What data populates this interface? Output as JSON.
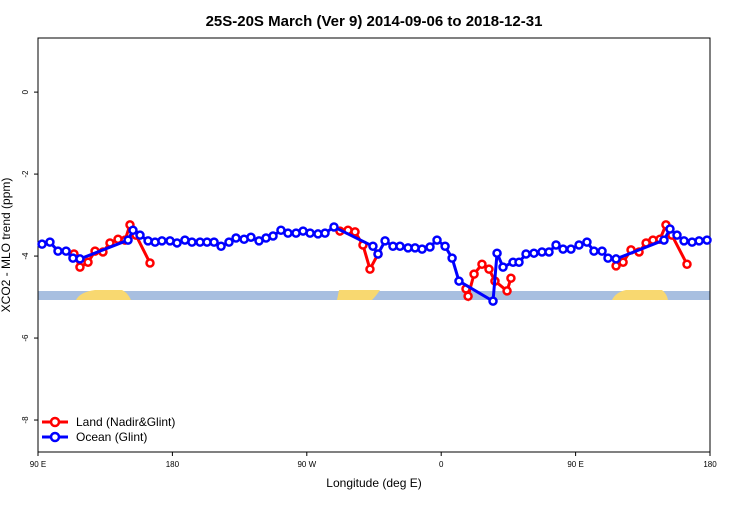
{
  "chart_data": {
    "type": "line",
    "title": "25S-20S March (Ver 9)   2014-09-06 to 2018-12-31",
    "x_label": "Longitude (deg E)",
    "y_label": "XCO2 - MLO trend (ppm)",
    "xlim": [
      90,
      540
    ],
    "ylim": [
      -8.78,
      1.32
    ],
    "xticks": [
      {
        "value": 90,
        "label": "90 E"
      },
      180,
      {
        "value": 270,
        "label": "90 W"
      },
      {
        "value": 360,
        "label": "0"
      },
      {
        "value": 450,
        "label": "90 E"
      },
      {
        "value": 540,
        "label": "180"
      }
    ],
    "yticks": [
      0,
      -2,
      -4,
      -6,
      -8
    ],
    "legend": "bottomleft",
    "series": [
      {
        "name": "Land (Nadir&Glint)",
        "color": "#ff0000",
        "x": [
          114.1,
          118.1,
          123.5,
          128.2,
          133.5,
          138.2,
          143.6,
          148.3,
          151.6,
          155.6,
          165.0,
          null,
          292.2,
          297.6,
          302.3,
          307.6,
          312.3,
          317.7,
          null,
          376.6,
          378.0,
          382.0,
          387.3,
          392.0,
          396.0,
          404.1,
          406.7,
          null,
          477.1,
          481.8,
          487.1,
          492.5,
          497.2,
          501.8,
          506.5,
          510.5,
          514.5,
          524.6
        ],
        "values": [
          -3.95,
          -4.27,
          -4.15,
          -3.88,
          -3.9,
          -3.68,
          -3.59,
          -3.61,
          -3.24,
          -3.49,
          -4.17,
          null,
          -3.39,
          -3.37,
          -3.41,
          -3.73,
          -4.32,
          -3.95,
          null,
          -4.8,
          -4.98,
          -4.44,
          -4.2,
          -4.32,
          -4.61,
          -4.85,
          -4.54,
          null,
          -4.24,
          -4.15,
          -3.85,
          -3.9,
          -3.68,
          -3.61,
          -3.59,
          -3.24,
          -3.49,
          -4.2
        ]
      },
      {
        "name": "Ocean (Glint)",
        "color": "#0000ff",
        "x": [
          92.7,
          98.0,
          103.4,
          108.8,
          113.4,
          118.1,
          150.3,
          153.6,
          158.3,
          163.7,
          168.4,
          173.0,
          178.4,
          183.1,
          188.4,
          193.1,
          198.5,
          203.2,
          207.9,
          212.6,
          217.9,
          222.6,
          228.0,
          232.6,
          238.0,
          242.7,
          247.4,
          252.7,
          257.4,
          262.8,
          267.5,
          272.2,
          277.5,
          282.2,
          288.2,
          314.3,
          317.7,
          322.4,
          327.7,
          332.4,
          337.8,
          342.5,
          347.2,
          352.5,
          357.2,
          362.6,
          367.3,
          371.9,
          394.7,
          397.4,
          401.4,
          408.1,
          412.1,
          416.8,
          422.1,
          427.5,
          432.2,
          436.9,
          441.6,
          446.9,
          452.3,
          457.6,
          462.3,
          467.7,
          471.7,
          477.1,
          509.2,
          513.2,
          517.9,
          522.6,
          528.0,
          532.7,
          538.0
        ],
        "values": [
          -3.71,
          -3.66,
          -3.88,
          -3.88,
          -4.05,
          -4.07,
          -3.61,
          -3.37,
          -3.49,
          -3.63,
          -3.66,
          -3.63,
          -3.63,
          -3.68,
          -3.61,
          -3.66,
          -3.66,
          -3.66,
          -3.66,
          -3.76,
          -3.66,
          -3.56,
          -3.59,
          -3.54,
          -3.63,
          -3.56,
          -3.51,
          -3.37,
          -3.44,
          -3.44,
          -3.39,
          -3.44,
          -3.46,
          -3.44,
          -3.29,
          -3.76,
          -3.95,
          -3.63,
          -3.76,
          -3.76,
          -3.8,
          -3.8,
          -3.83,
          -3.78,
          -3.61,
          -3.76,
          -4.05,
          -4.61,
          -5.1,
          -3.93,
          -4.27,
          -4.15,
          -4.15,
          -3.95,
          -3.93,
          -3.9,
          -3.9,
          -3.73,
          -3.83,
          -3.83,
          -3.73,
          -3.66,
          -3.88,
          -3.88,
          -4.05,
          -4.07,
          -3.61,
          -3.34,
          -3.49,
          -3.63,
          -3.66,
          -3.63,
          -3.61
        ]
      }
    ]
  }
}
